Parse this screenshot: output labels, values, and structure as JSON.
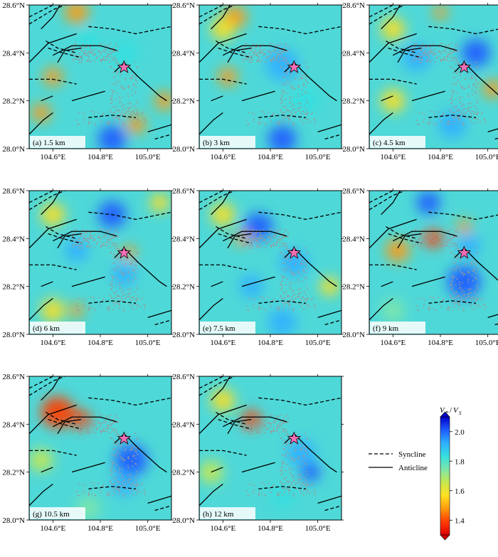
{
  "figure": {
    "panels": [
      {
        "label": "(a) 1.5 km"
      },
      {
        "label": "(b) 3 km"
      },
      {
        "label": "(c) 4.5 km"
      },
      {
        "label": "(d) 6 km"
      },
      {
        "label": "(e) 7.5 km"
      },
      {
        "label": "(f) 9 km"
      },
      {
        "label": "(g) 10.5 km"
      },
      {
        "label": "(h) 12 km"
      }
    ],
    "x_ticks": [
      "104.6°E",
      "104.8°E",
      "105.0°E"
    ],
    "y_ticks": [
      "28.6°N",
      "28.4°N",
      "28.2°N",
      "28.0°N"
    ],
    "legend": {
      "syncline": "Syncline",
      "anticline": "Anticline"
    },
    "colorbar": {
      "title_main": "V",
      "title_p": "P",
      "title_s": "S",
      "ticks": [
        "2.0",
        "1.8",
        "1.6",
        "1.4"
      ],
      "colors": [
        "#0000c8",
        "#1e5cff",
        "#2fb0ff",
        "#35e0e0",
        "#7ee6a8",
        "#c8e850",
        "#ffe020",
        "#ff9a10",
        "#ff3c00",
        "#e00000"
      ]
    },
    "colors": {
      "star": "#f06eb4",
      "seismicity": "#9a9a9a"
    }
  },
  "chart_data": {
    "type": "heatmap",
    "description_axes": {
      "xlim": [
        104.5,
        105.1
      ],
      "ylim": [
        28.0,
        28.6
      ]
    },
    "x_ticks": [
      104.6,
      104.8,
      105.0
    ],
    "y_ticks": [
      28.0,
      28.2,
      28.4,
      28.6
    ],
    "colorbar": {
      "quantity": "Vp/Vs",
      "range": [
        1.3,
        2.1
      ],
      "ticks": [
        1.4,
        1.6,
        1.8,
        2.0
      ]
    },
    "mainshock": {
      "lon": 104.9,
      "lat": 28.34
    },
    "depths_km": [
      1.5,
      3,
      4.5,
      6,
      7.5,
      9,
      10.5,
      12
    ],
    "anomalies": [
      [
        {
          "lon": 104.7,
          "lat": 28.57,
          "v": 1.45,
          "r": 0.05
        },
        {
          "lon": 104.85,
          "lat": 28.04,
          "v": 2.05,
          "r": 0.06
        },
        {
          "lon": 104.55,
          "lat": 28.15,
          "v": 1.5,
          "r": 0.04
        },
        {
          "lon": 105.07,
          "lat": 28.2,
          "v": 1.45,
          "r": 0.04
        },
        {
          "lon": 104.6,
          "lat": 28.3,
          "v": 1.5,
          "r": 0.04
        },
        {
          "lon": 104.9,
          "lat": 28.4,
          "v": 1.85,
          "r": 0.06
        },
        {
          "lon": 104.95,
          "lat": 28.1,
          "v": 1.5,
          "r": 0.04
        },
        {
          "lon": 104.75,
          "lat": 28.45,
          "v": 1.85,
          "r": 0.05
        }
      ],
      [
        {
          "lon": 104.85,
          "lat": 28.04,
          "v": 2.05,
          "r": 0.06
        },
        {
          "lon": 104.65,
          "lat": 28.55,
          "v": 1.5,
          "r": 0.05
        },
        {
          "lon": 104.85,
          "lat": 28.35,
          "v": 1.95,
          "r": 0.07
        },
        {
          "lon": 104.62,
          "lat": 28.3,
          "v": 1.5,
          "r": 0.04
        },
        {
          "lon": 104.95,
          "lat": 28.2,
          "v": 1.85,
          "r": 0.06
        },
        {
          "lon": 104.6,
          "lat": 28.5,
          "v": 1.6,
          "r": 0.05
        }
      ],
      [
        {
          "lon": 104.7,
          "lat": 28.38,
          "v": 1.95,
          "r": 0.06
        },
        {
          "lon": 104.95,
          "lat": 28.4,
          "v": 2.0,
          "r": 0.06
        },
        {
          "lon": 104.8,
          "lat": 28.57,
          "v": 1.45,
          "r": 0.03
        },
        {
          "lon": 104.6,
          "lat": 28.2,
          "v": 1.6,
          "r": 0.05
        },
        {
          "lon": 104.85,
          "lat": 28.1,
          "v": 1.95,
          "r": 0.06
        },
        {
          "lon": 104.6,
          "lat": 28.5,
          "v": 1.6,
          "r": 0.05
        },
        {
          "lon": 105.02,
          "lat": 28.25,
          "v": 1.5,
          "r": 0.04
        }
      ],
      [
        {
          "lon": 104.85,
          "lat": 28.5,
          "v": 2.0,
          "r": 0.06
        },
        {
          "lon": 104.7,
          "lat": 28.35,
          "v": 1.95,
          "r": 0.05
        },
        {
          "lon": 104.9,
          "lat": 28.25,
          "v": 1.95,
          "r": 0.05
        },
        {
          "lon": 104.92,
          "lat": 28.34,
          "v": 1.45,
          "r": 0.03
        },
        {
          "lon": 104.6,
          "lat": 28.5,
          "v": 1.6,
          "r": 0.05
        },
        {
          "lon": 104.6,
          "lat": 28.1,
          "v": 1.6,
          "r": 0.05
        },
        {
          "lon": 105.05,
          "lat": 28.55,
          "v": 1.6,
          "r": 0.04
        },
        {
          "lon": 104.7,
          "lat": 28.1,
          "v": 1.45,
          "r": 0.03
        }
      ],
      [
        {
          "lon": 104.75,
          "lat": 28.45,
          "v": 2.0,
          "r": 0.06
        },
        {
          "lon": 104.9,
          "lat": 28.3,
          "v": 1.9,
          "r": 0.06
        },
        {
          "lon": 104.72,
          "lat": 28.2,
          "v": 1.9,
          "r": 0.05
        },
        {
          "lon": 104.85,
          "lat": 28.05,
          "v": 1.9,
          "r": 0.06
        },
        {
          "lon": 105.05,
          "lat": 28.2,
          "v": 1.55,
          "r": 0.04
        },
        {
          "lon": 104.6,
          "lat": 28.5,
          "v": 1.6,
          "r": 0.05
        },
        {
          "lon": 104.68,
          "lat": 28.4,
          "v": 1.5,
          "r": 0.03
        }
      ],
      [
        {
          "lon": 104.75,
          "lat": 28.55,
          "v": 2.05,
          "r": 0.05
        },
        {
          "lon": 104.77,
          "lat": 28.4,
          "v": 1.35,
          "r": 0.04
        },
        {
          "lon": 104.62,
          "lat": 28.35,
          "v": 1.5,
          "r": 0.05
        },
        {
          "lon": 104.9,
          "lat": 28.22,
          "v": 2.05,
          "r": 0.07
        },
        {
          "lon": 104.92,
          "lat": 28.37,
          "v": 1.95,
          "r": 0.05
        },
        {
          "lon": 104.6,
          "lat": 28.1,
          "v": 1.75,
          "r": 0.05
        },
        {
          "lon": 104.9,
          "lat": 28.45,
          "v": 1.5,
          "r": 0.03
        }
      ],
      [
        {
          "lon": 104.62,
          "lat": 28.45,
          "v": 1.35,
          "r": 0.07
        },
        {
          "lon": 104.72,
          "lat": 28.42,
          "v": 1.35,
          "r": 0.04
        },
        {
          "lon": 104.93,
          "lat": 28.25,
          "v": 2.0,
          "r": 0.07
        },
        {
          "lon": 104.9,
          "lat": 28.15,
          "v": 1.95,
          "r": 0.05
        },
        {
          "lon": 104.55,
          "lat": 28.25,
          "v": 1.65,
          "r": 0.05
        },
        {
          "lon": 104.75,
          "lat": 28.05,
          "v": 1.75,
          "r": 0.05
        }
      ],
      [
        {
          "lon": 104.72,
          "lat": 28.42,
          "v": 1.35,
          "r": 0.04
        },
        {
          "lon": 104.6,
          "lat": 28.5,
          "v": 1.55,
          "r": 0.05
        },
        {
          "lon": 104.93,
          "lat": 28.28,
          "v": 1.95,
          "r": 0.06
        },
        {
          "lon": 104.97,
          "lat": 28.2,
          "v": 2.0,
          "r": 0.04
        },
        {
          "lon": 104.85,
          "lat": 28.1,
          "v": 1.8,
          "r": 0.05
        },
        {
          "lon": 104.55,
          "lat": 28.2,
          "v": 1.7,
          "r": 0.05
        }
      ]
    ]
  }
}
